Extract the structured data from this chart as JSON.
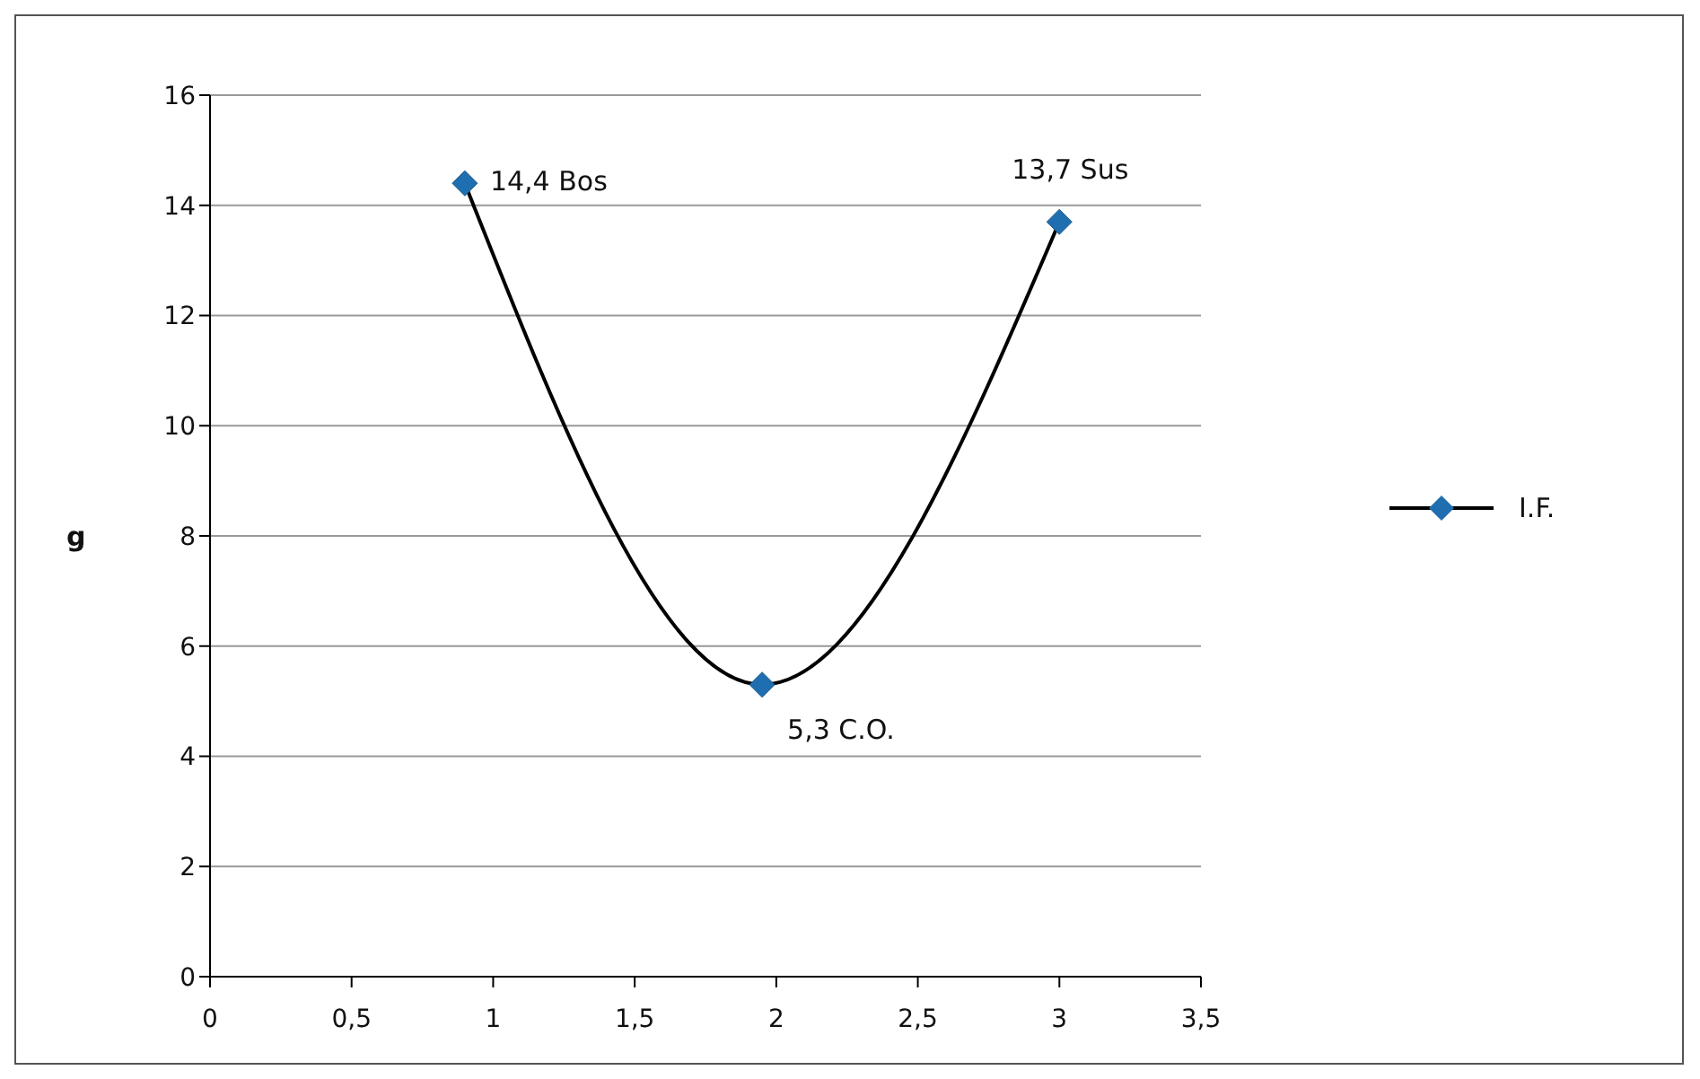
{
  "chart_data": {
    "type": "line",
    "ylabel": "g",
    "x": [
      0.9,
      1.95,
      3.0
    ],
    "series": [
      {
        "name": "I.F.",
        "color": "#1f6fb0",
        "values": [
          14.4,
          5.3,
          13.7
        ],
        "value_labels": [
          "14,4 Bos",
          "5,3 C.O.",
          "13,7 Sus"
        ]
      }
    ],
    "xlim": [
      0,
      3.5
    ],
    "xticks": [
      0,
      {
        "value": 0.5,
        "label": "0,5"
      },
      1,
      {
        "value": 1.5,
        "label": "1,5"
      },
      2,
      {
        "value": 2.5,
        "label": "2,5"
      },
      3,
      {
        "value": 3.5,
        "label": "3,5"
      }
    ],
    "ylim": [
      0,
      16
    ],
    "yticks": [
      0,
      2,
      4,
      6,
      8,
      10,
      12,
      14,
      16
    ],
    "grid": "y",
    "legend": "right",
    "marker": "diamond",
    "line_style": "solid"
  }
}
